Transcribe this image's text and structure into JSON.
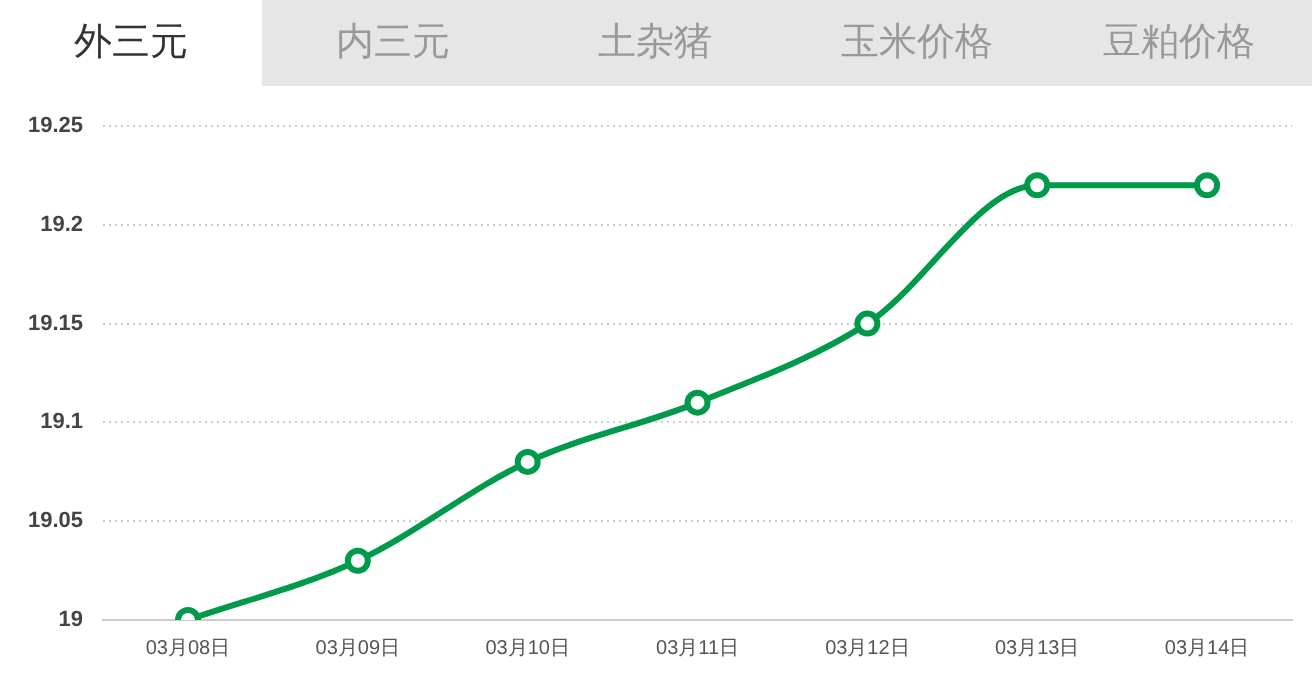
{
  "chart_data": {
    "type": "line",
    "annotations": [
      "外三元",
      "内三元",
      "土杂猪",
      "玉米价格",
      "豆粕价格"
    ],
    "categories": [
      "03月08日",
      "03月09日",
      "03月10日",
      "03月11日",
      "03月12日",
      "03月13日",
      "03月14日"
    ],
    "series": [
      {
        "color": "#009a4a",
        "values": [
          19,
          19.03,
          19.08,
          19.11,
          19.15,
          19.22,
          19.22
        ]
      }
    ],
    "ylim": [
      19,
      19.25
    ],
    "yticks": [
      19,
      19.05,
      19.1,
      19.15,
      19.2,
      19.25
    ],
    "grid": "y",
    "legend": false,
    "marker": "circle",
    "line_style": "solid"
  }
}
